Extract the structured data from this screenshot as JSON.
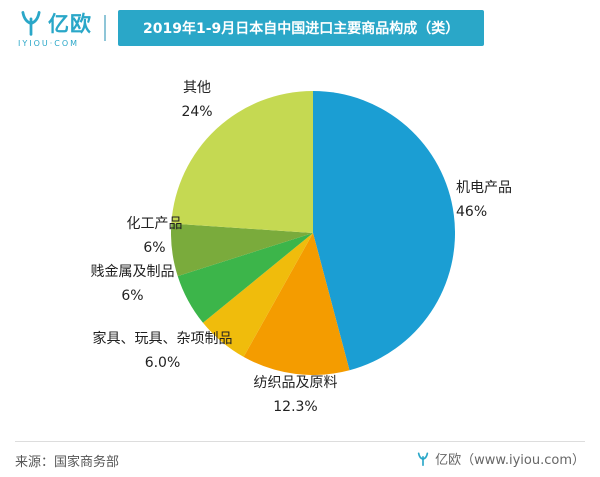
{
  "header": {
    "logo_text": "亿欧",
    "logo_sub": "IYIOU·COM",
    "title": "2019年1-9月日本自中国进口主要商品构成（类）"
  },
  "chart_data": {
    "type": "pie",
    "title": "2019年1-9月日本自中国进口主要商品构成（类）",
    "source": "国家商务部",
    "start_angle_deg": 0,
    "direction": "clockwise",
    "legend": "none",
    "slices": [
      {
        "label": "机电产品",
        "value": 46,
        "pct_label": "46%",
        "color": "#1b9ed3"
      },
      {
        "label": "纺织品及原料",
        "value": 12.3,
        "pct_label": "12.3%",
        "color": "#f49c00"
      },
      {
        "label": "家具、玩具、杂项制品",
        "value": 6.0,
        "pct_label": "6.0%",
        "color": "#f0bc0c"
      },
      {
        "label": "贱金属及制品",
        "value": 6,
        "pct_label": "6%",
        "color": "#3cb54a"
      },
      {
        "label": "化工产品",
        "value": 6,
        "pct_label": "6%",
        "color": "#7aab3c"
      },
      {
        "label": "其他",
        "value": 24,
        "pct_label": "24%",
        "color": "#c5d952"
      }
    ]
  },
  "footer": {
    "source": "来源：国家商务部",
    "brand": "亿欧（www.iyiou.com）"
  }
}
